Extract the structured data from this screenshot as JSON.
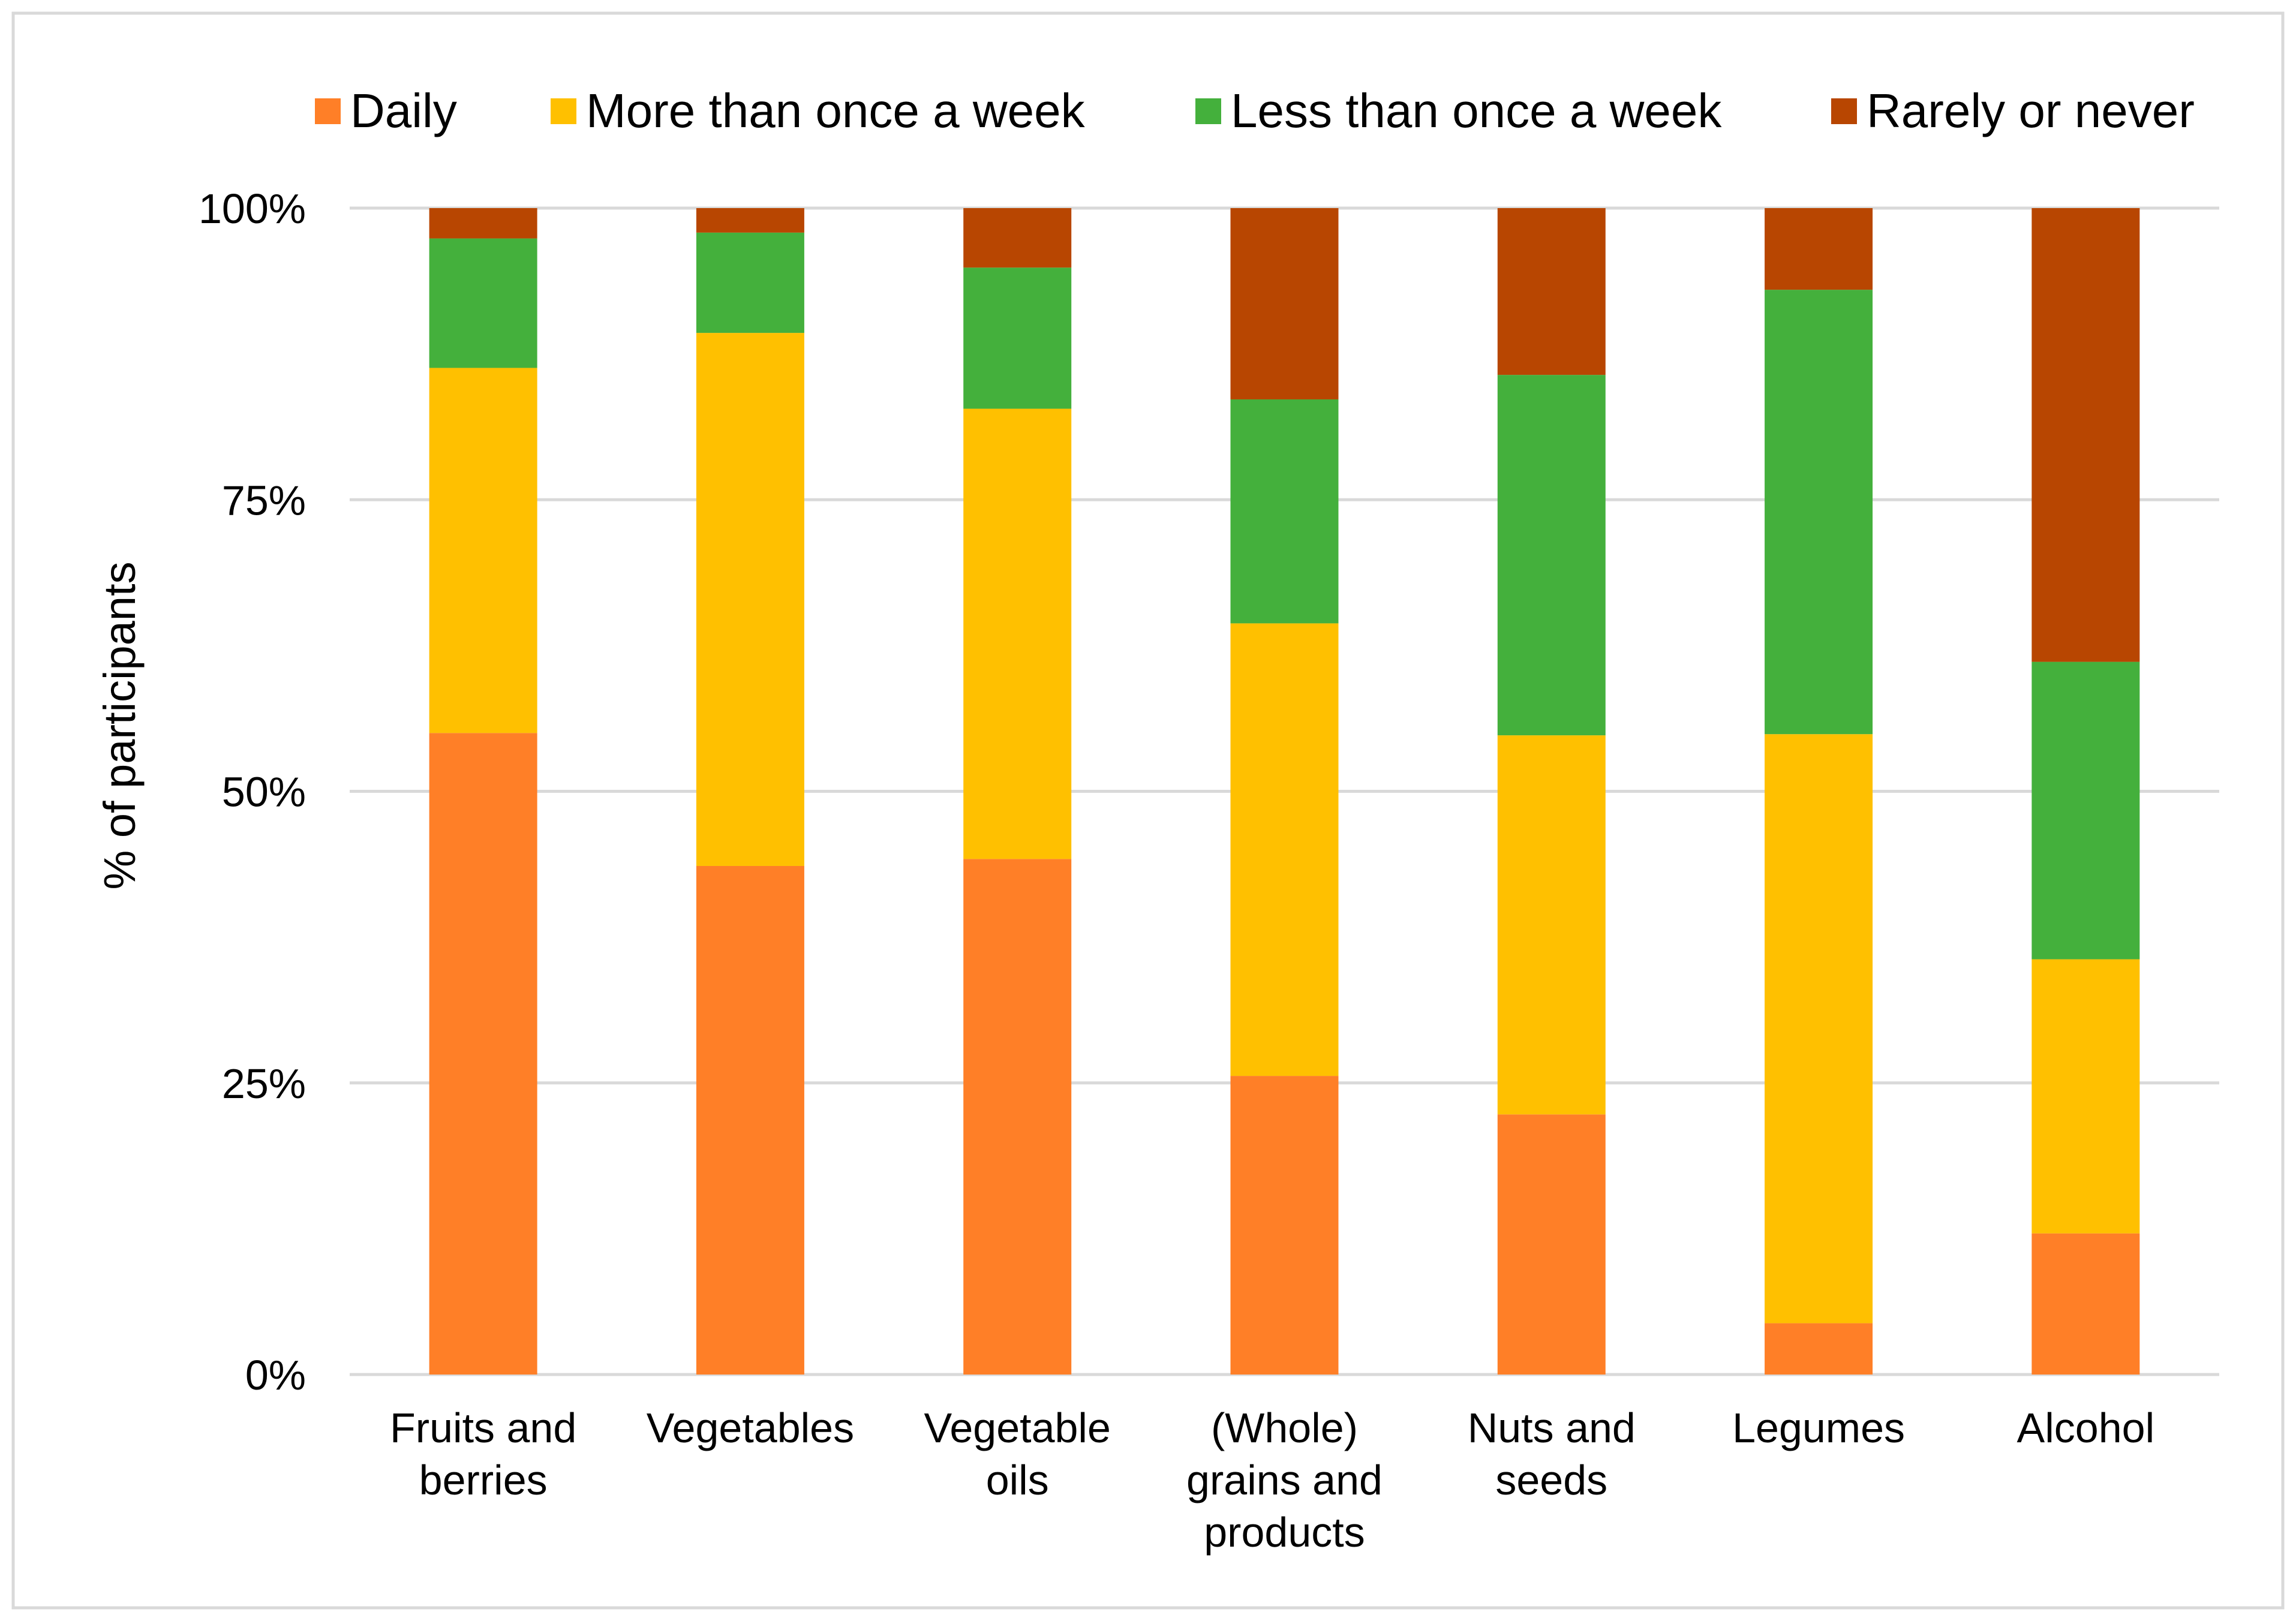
{
  "chart_data": {
    "type": "bar",
    "stacked": true,
    "percent": true,
    "title": "",
    "xlabel": "",
    "ylabel": "% of participants",
    "ylim": [
      0,
      100
    ],
    "yticks": [
      "0%",
      "25%",
      "50%",
      "75%",
      "100%"
    ],
    "ytick_values": [
      0,
      25,
      50,
      75,
      100
    ],
    "grid": true,
    "legend_position": "top",
    "categories": [
      [
        "Fruits and",
        "berries"
      ],
      [
        "Vegetables"
      ],
      [
        "Vegetable",
        "oils"
      ],
      [
        "(Whole)",
        "grains and",
        "products"
      ],
      [
        "Nuts and",
        "seeds"
      ],
      [
        "Legumes"
      ],
      [
        "Alcohol"
      ]
    ],
    "series": [
      {
        "name": "Daily",
        "color": "#FF7F27",
        "values": [
          55.0,
          43.6,
          44.2,
          25.6,
          22.3,
          4.4,
          12.1
        ]
      },
      {
        "name": "More than once a week",
        "color": "#FFC000",
        "values": [
          31.3,
          45.7,
          38.6,
          38.8,
          32.5,
          50.5,
          23.5
        ]
      },
      {
        "name": "Less than once a week",
        "color": "#44B03C",
        "values": [
          11.1,
          8.6,
          12.1,
          19.2,
          30.9,
          38.1,
          25.5
        ]
      },
      {
        "name": "Rarely or never",
        "color": "#B84601",
        "values": [
          2.6,
          2.1,
          5.1,
          16.4,
          14.3,
          7.0,
          38.9
        ]
      }
    ]
  },
  "styles": {
    "frame_color": "#D9D9D9",
    "grid_color": "#D9D9D9"
  }
}
